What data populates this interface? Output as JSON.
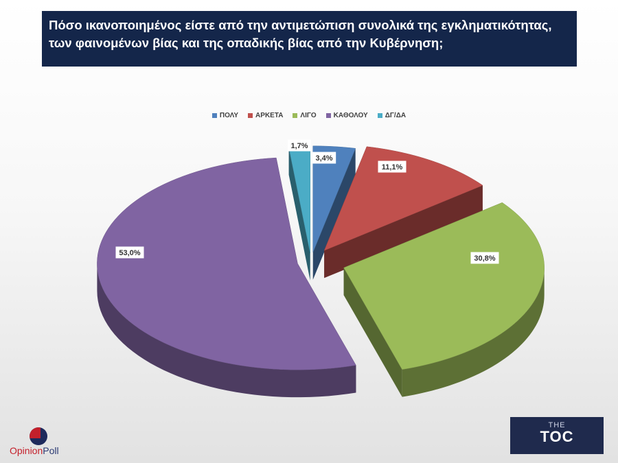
{
  "title": {
    "line1": "Πόσο ικανοποιημένος είστε από την αντιμετώπιση συνολικά της εγκληματικότητας,",
    "line2": "των φαινομένων βίας και της οπαδικής βίας από την Κυβέρνηση;"
  },
  "chart_data": {
    "type": "pie",
    "style": "3d-exploded",
    "legend_position": "top",
    "categories": [
      "ΠΟΛΥ",
      "ΑΡΚΕΤΑ",
      "ΛΙΓΟ",
      "ΚΑΘΟΛΟΥ",
      "ΔΓ/ΔΑ"
    ],
    "values": [
      3.4,
      11.1,
      30.8,
      53.0,
      1.7
    ],
    "data_labels": [
      "3,4%",
      "11,1%",
      "30,8%",
      "53,0%",
      "1,7%"
    ],
    "colors": [
      "#4f81bd",
      "#c0504d",
      "#9bbb59",
      "#8064a2",
      "#4bacc6"
    ]
  },
  "logos": {
    "left": {
      "part1": "Opinion",
      "part2": "Poll"
    },
    "right": {
      "line1": "THE",
      "line2": "TOC"
    }
  }
}
